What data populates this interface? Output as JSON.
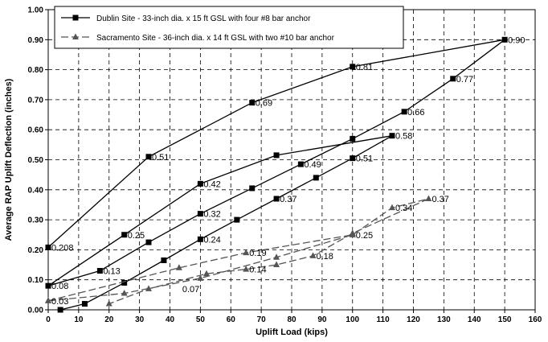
{
  "chart_data": {
    "type": "line",
    "title": "",
    "xlabel": "Uplift Load (kips)",
    "ylabel": "Average RAP Uplift Deflection (inches)",
    "xlim": [
      0,
      160
    ],
    "ylim": [
      0,
      1.0
    ],
    "x_ticks": [
      "0",
      "10",
      "20",
      "30",
      "40",
      "50",
      "60",
      "70",
      "80",
      "90",
      "100",
      "110",
      "120",
      "130",
      "140",
      "150",
      "160"
    ],
    "y_ticks": [
      "0.00",
      "0.10",
      "0.20",
      "0.30",
      "0.40",
      "0.50",
      "0.60",
      "0.70",
      "0.80",
      "0.90",
      "1.00"
    ],
    "grid": true,
    "legend_position": "top-left",
    "series": [
      {
        "name": "Dublin Site - 33-inch dia. x 15 ft GSL with four #8 bar anchor",
        "color": "#000000",
        "line_style": "solid",
        "marker": "square",
        "points": [
          [
            0,
            0.208
          ],
          [
            33,
            0.51
          ],
          [
            67,
            0.69
          ],
          [
            100,
            0.81
          ],
          [
            150,
            0.9
          ],
          [
            133,
            0.77
          ],
          [
            117,
            0.66
          ],
          [
            100,
            0.57
          ],
          [
            83,
            0.485
          ],
          [
            67,
            0.405
          ],
          [
            50,
            0.32
          ],
          [
            33,
            0.225
          ],
          [
            17,
            0.13
          ],
          [
            0,
            0.08
          ],
          [
            25,
            0.25
          ],
          [
            50,
            0.42
          ],
          [
            75,
            0.515
          ],
          [
            113,
            0.58
          ],
          [
            100,
            0.505
          ],
          [
            88,
            0.44
          ],
          [
            75,
            0.37
          ],
          [
            62,
            0.3
          ],
          [
            50,
            0.235
          ],
          [
            38,
            0.165
          ],
          [
            25,
            0.09
          ],
          [
            12,
            0.02
          ],
          [
            4,
            0.0
          ]
        ],
        "segments": [
          [
            0,
            4
          ],
          [
            4,
            13
          ],
          [
            13,
            17
          ],
          [
            17,
            26
          ]
        ]
      },
      {
        "name": "Sacramento Site - 36-inch dia. x 14 ft GSL with two #10 bar anchor",
        "color": "#555555",
        "line_style": "dashed",
        "marker": "triangle",
        "points": [
          [
            0,
            0.03
          ],
          [
            43,
            0.14
          ],
          [
            65,
            0.19
          ],
          [
            100,
            0.25
          ],
          [
            113,
            0.34
          ],
          [
            125,
            0.37
          ],
          [
            100,
            0.255
          ],
          [
            87,
            0.18
          ],
          [
            75,
            0.15
          ],
          [
            65,
            0.135
          ],
          [
            52,
            0.12
          ],
          [
            33,
            0.07
          ],
          [
            20,
            0.02
          ],
          [
            0,
            0.03
          ],
          [
            25,
            0.055
          ],
          [
            50,
            0.105
          ],
          [
            75,
            0.175
          ],
          [
            100,
            0.25
          ]
        ],
        "segments": [
          [
            0,
            5
          ],
          [
            5,
            12
          ],
          [
            13,
            17
          ]
        ]
      }
    ],
    "annotations": [
      {
        "text": "0.208",
        "x": 0,
        "y": 0.208
      },
      {
        "text": "0.51",
        "x": 33,
        "y": 0.51
      },
      {
        "text": "0.69",
        "x": 67,
        "y": 0.69
      },
      {
        "text": "0.81",
        "x": 100,
        "y": 0.81
      },
      {
        "text": "0.90",
        "x": 150,
        "y": 0.9
      },
      {
        "text": "0.77",
        "x": 133,
        "y": 0.77
      },
      {
        "text": "0.66",
        "x": 117,
        "y": 0.66
      },
      {
        "text": "0.58",
        "x": 113,
        "y": 0.58
      },
      {
        "text": "0.51",
        "x": 100,
        "y": 0.505
      },
      {
        "text": "0.49",
        "x": 83,
        "y": 0.485
      },
      {
        "text": "0.42",
        "x": 50,
        "y": 0.42
      },
      {
        "text": "0.37",
        "x": 75,
        "y": 0.37
      },
      {
        "text": "0.32",
        "x": 50,
        "y": 0.32
      },
      {
        "text": "0.25",
        "x": 25,
        "y": 0.25
      },
      {
        "text": "0.24",
        "x": 50,
        "y": 0.235
      },
      {
        "text": "0.13",
        "x": 17,
        "y": 0.13
      },
      {
        "text": "0.08",
        "x": 0,
        "y": 0.08
      },
      {
        "text": "0.03",
        "x": 0,
        "y": 0.03
      },
      {
        "text": "0.19",
        "x": 65,
        "y": 0.19
      },
      {
        "text": "0.14",
        "x": 65,
        "y": 0.135
      },
      {
        "text": "0.07",
        "x": 43,
        "y": 0.07
      },
      {
        "text": "0.25",
        "x": 100,
        "y": 0.25
      },
      {
        "text": "0.18",
        "x": 87,
        "y": 0.18
      },
      {
        "text": "0.34",
        "x": 113,
        "y": 0.34
      },
      {
        "text": "0.37",
        "x": 125,
        "y": 0.37
      }
    ]
  }
}
